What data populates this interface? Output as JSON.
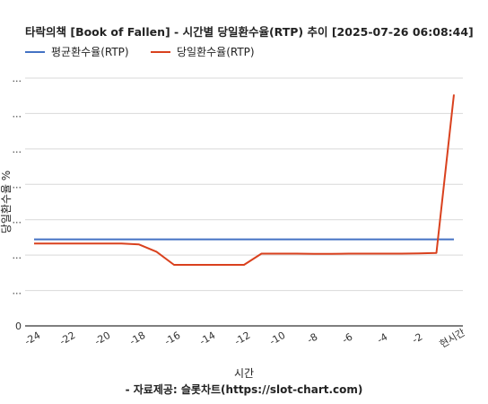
{
  "chart_data": {
    "type": "line",
    "title": "타락의책 [Book of Fallen] - 시간별 당일환수율(RTP) 추이 [2025-07-26 06:08:44]",
    "xlabel": "시간",
    "ylabel": "당일환수율 %",
    "source": "- 자료제공: 슬롯차트(https://slot-chart.com)",
    "x_ticks": [
      "-24",
      "-22",
      "-20",
      "-18",
      "-16",
      "-14",
      "-12",
      "-10",
      "-8",
      "-6",
      "-4",
      "-2",
      "현시간"
    ],
    "y_ticks": [
      "0",
      "...",
      "...",
      "...",
      "...",
      "...",
      "...",
      "..."
    ],
    "x": [
      -24,
      -23,
      -22,
      -21,
      -20,
      -19,
      -18,
      -17,
      -16,
      -15,
      -14,
      -13,
      -12,
      -11,
      -10,
      -9,
      -8,
      -7,
      -6,
      -5,
      -4,
      -3,
      -2,
      -1,
      0
    ],
    "series": [
      {
        "name": "평균환수율(RTP)",
        "color": "#4472c4",
        "values": [
          96.3,
          96.3,
          96.3,
          96.3,
          96.3,
          96.3,
          96.3,
          96.3,
          96.3,
          96.3,
          96.3,
          96.3,
          96.3,
          96.3,
          96.3,
          96.3,
          96.3,
          96.3,
          96.3,
          96.3,
          96.3,
          96.3,
          96.3,
          96.3,
          96.3
        ]
      },
      {
        "name": "당일환수율(RTP)",
        "color": "#d9411e",
        "values": [
          94.5,
          94.5,
          94.5,
          94.5,
          94.5,
          94.5,
          94.1,
          91.0,
          85.4,
          85.4,
          85.4,
          85.4,
          85.4,
          90.2,
          90.2,
          90.2,
          90.1,
          90.1,
          90.2,
          90.2,
          90.2,
          90.2,
          90.3,
          90.5,
          158.0
        ]
      }
    ],
    "ylim": [
      59.4,
      165.0
    ],
    "grid": true,
    "legend_position": "top-left"
  }
}
